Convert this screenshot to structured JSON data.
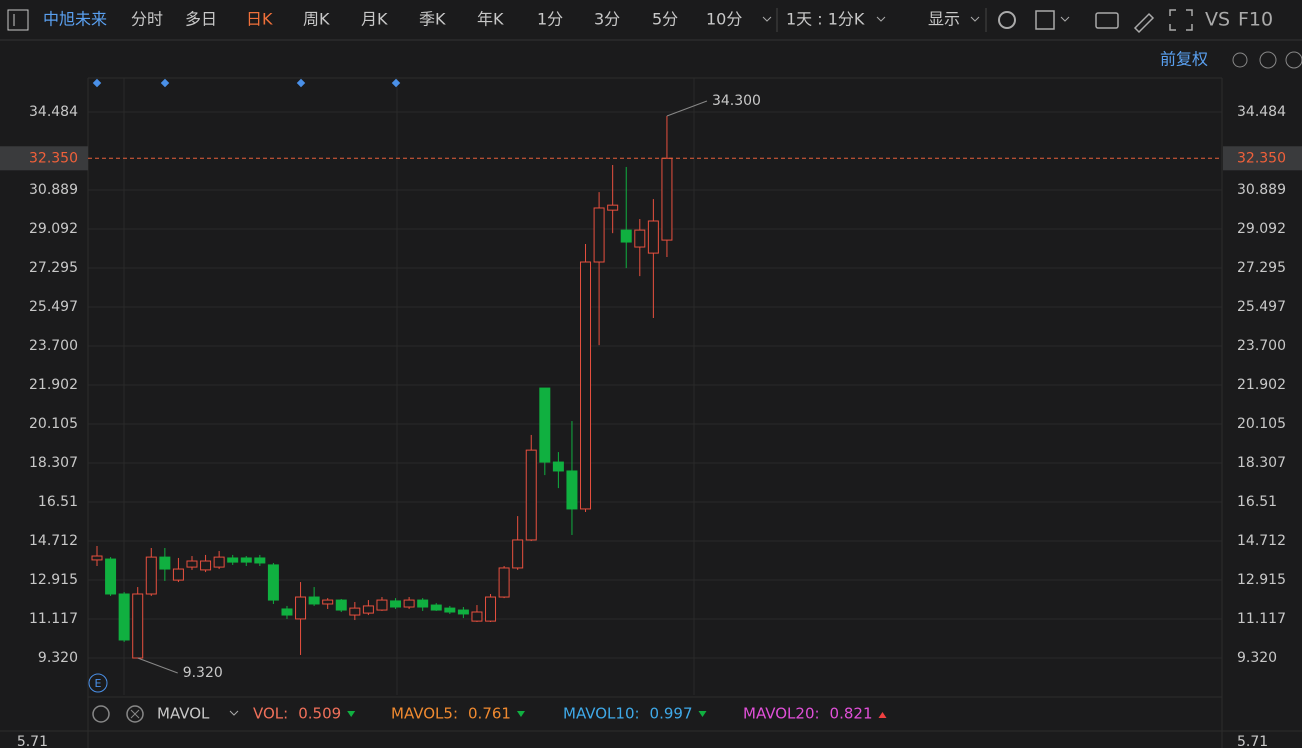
{
  "toolbar": {
    "symbol": "中旭未来",
    "tabs": [
      "分时",
      "多日",
      "日K",
      "周K",
      "月K",
      "季K",
      "年K",
      "1分",
      "3分",
      "5分",
      "10分"
    ],
    "active_tab": "日K",
    "period": "1天 : 1分K",
    "display": "显示",
    "vs": "VS",
    "f10": "F10"
  },
  "chart_data": {
    "type": "candlestick",
    "open": [
      13.84,
      13.88,
      12.27,
      9.32,
      12.27,
      13.97,
      12.91,
      13.51,
      13.38,
      13.51,
      13.93,
      13.93,
      13.93,
      13.61,
      11.58,
      11.12,
      12.13,
      11.81,
      11.99,
      11.3,
      11.39,
      11.53,
      11.95,
      11.67,
      11.99,
      11.76,
      11.62,
      11.53,
      11.02,
      11.02,
      12.13,
      13.47,
      14.76,
      21.76,
      18.35,
      17.94,
      16.19,
      27.57,
      29.96,
      29.04,
      28.26,
      27.98,
      28.58
    ],
    "high": [
      14.48,
      13.97,
      12.36,
      12.59,
      14.39,
      14.39,
      13.93,
      14.02,
      14.07,
      14.25,
      14.07,
      14.02,
      14.07,
      13.7,
      11.72,
      12.82,
      12.59,
      12.08,
      12.04,
      11.9,
      11.99,
      12.13,
      12.08,
      12.13,
      12.08,
      11.85,
      11.72,
      11.67,
      11.76,
      12.27,
      13.56,
      15.86,
      19.6,
      21.76,
      18.81,
      20.24,
      28.4,
      30.79,
      32.04,
      31.95,
      29.55,
      30.47,
      34.3
    ],
    "low": [
      13.56,
      12.18,
      10.06,
      9.32,
      12.18,
      12.87,
      12.82,
      13.38,
      13.28,
      13.42,
      13.61,
      13.56,
      13.56,
      11.81,
      11.12,
      9.46,
      11.72,
      11.58,
      11.44,
      11.07,
      11.3,
      11.49,
      11.58,
      11.58,
      11.49,
      11.49,
      11.35,
      11.16,
      10.98,
      10.98,
      12.08,
      13.38,
      14.71,
      17.75,
      17.15,
      14.99,
      16.05,
      23.74,
      28.9,
      27.29,
      26.92,
      24.99,
      27.8
    ],
    "close": [
      14.02,
      12.27,
      10.15,
      12.27,
      13.97,
      13.42,
      13.42,
      13.79,
      13.79,
      13.97,
      13.74,
      13.74,
      13.7,
      11.99,
      11.3,
      12.13,
      11.81,
      11.99,
      11.53,
      11.62,
      11.72,
      11.99,
      11.67,
      11.99,
      11.67,
      11.53,
      11.44,
      11.35,
      11.44,
      12.13,
      13.47,
      14.76,
      18.9,
      18.35,
      17.94,
      16.19,
      27.57,
      30.06,
      30.19,
      28.49,
      29.04,
      29.46,
      32.35
    ],
    "up_color": "#e8503f",
    "down_color": "#10b040",
    "ylim": [
      7.615,
      36.05
    ],
    "yticks": [
      34.484,
      30.889,
      29.092,
      27.295,
      25.497,
      {
        "value": 23.7,
        "label": "23.700"
      },
      21.902,
      20.105,
      18.307,
      16.51,
      14.712,
      12.915,
      11.117,
      {
        "value": 9.32,
        "label": "9.320"
      }
    ],
    "grid": true,
    "current_price": {
      "value": 32.35,
      "label": "32.350"
    },
    "annotations": [
      {
        "value": 34.3,
        "label": "34.300",
        "index": 42
      },
      {
        "value": 9.32,
        "label": "9.320",
        "index": 3
      }
    ],
    "price_adjust": "前复权"
  },
  "indicator_bar": {
    "name": "MAVOL",
    "items": [
      {
        "label": "VOL:",
        "value": "0.509",
        "color": "#f0705a"
      },
      {
        "label": "MAVOL5:",
        "value": "0.761",
        "color": "#f08a30"
      },
      {
        "label": "MAVOL10:",
        "value": "0.997",
        "color": "#3fa9e8"
      },
      {
        "label": "MAVOL20:",
        "value": "0.821",
        "color": "#e050d8"
      }
    ],
    "volume_tick": "5.71"
  }
}
